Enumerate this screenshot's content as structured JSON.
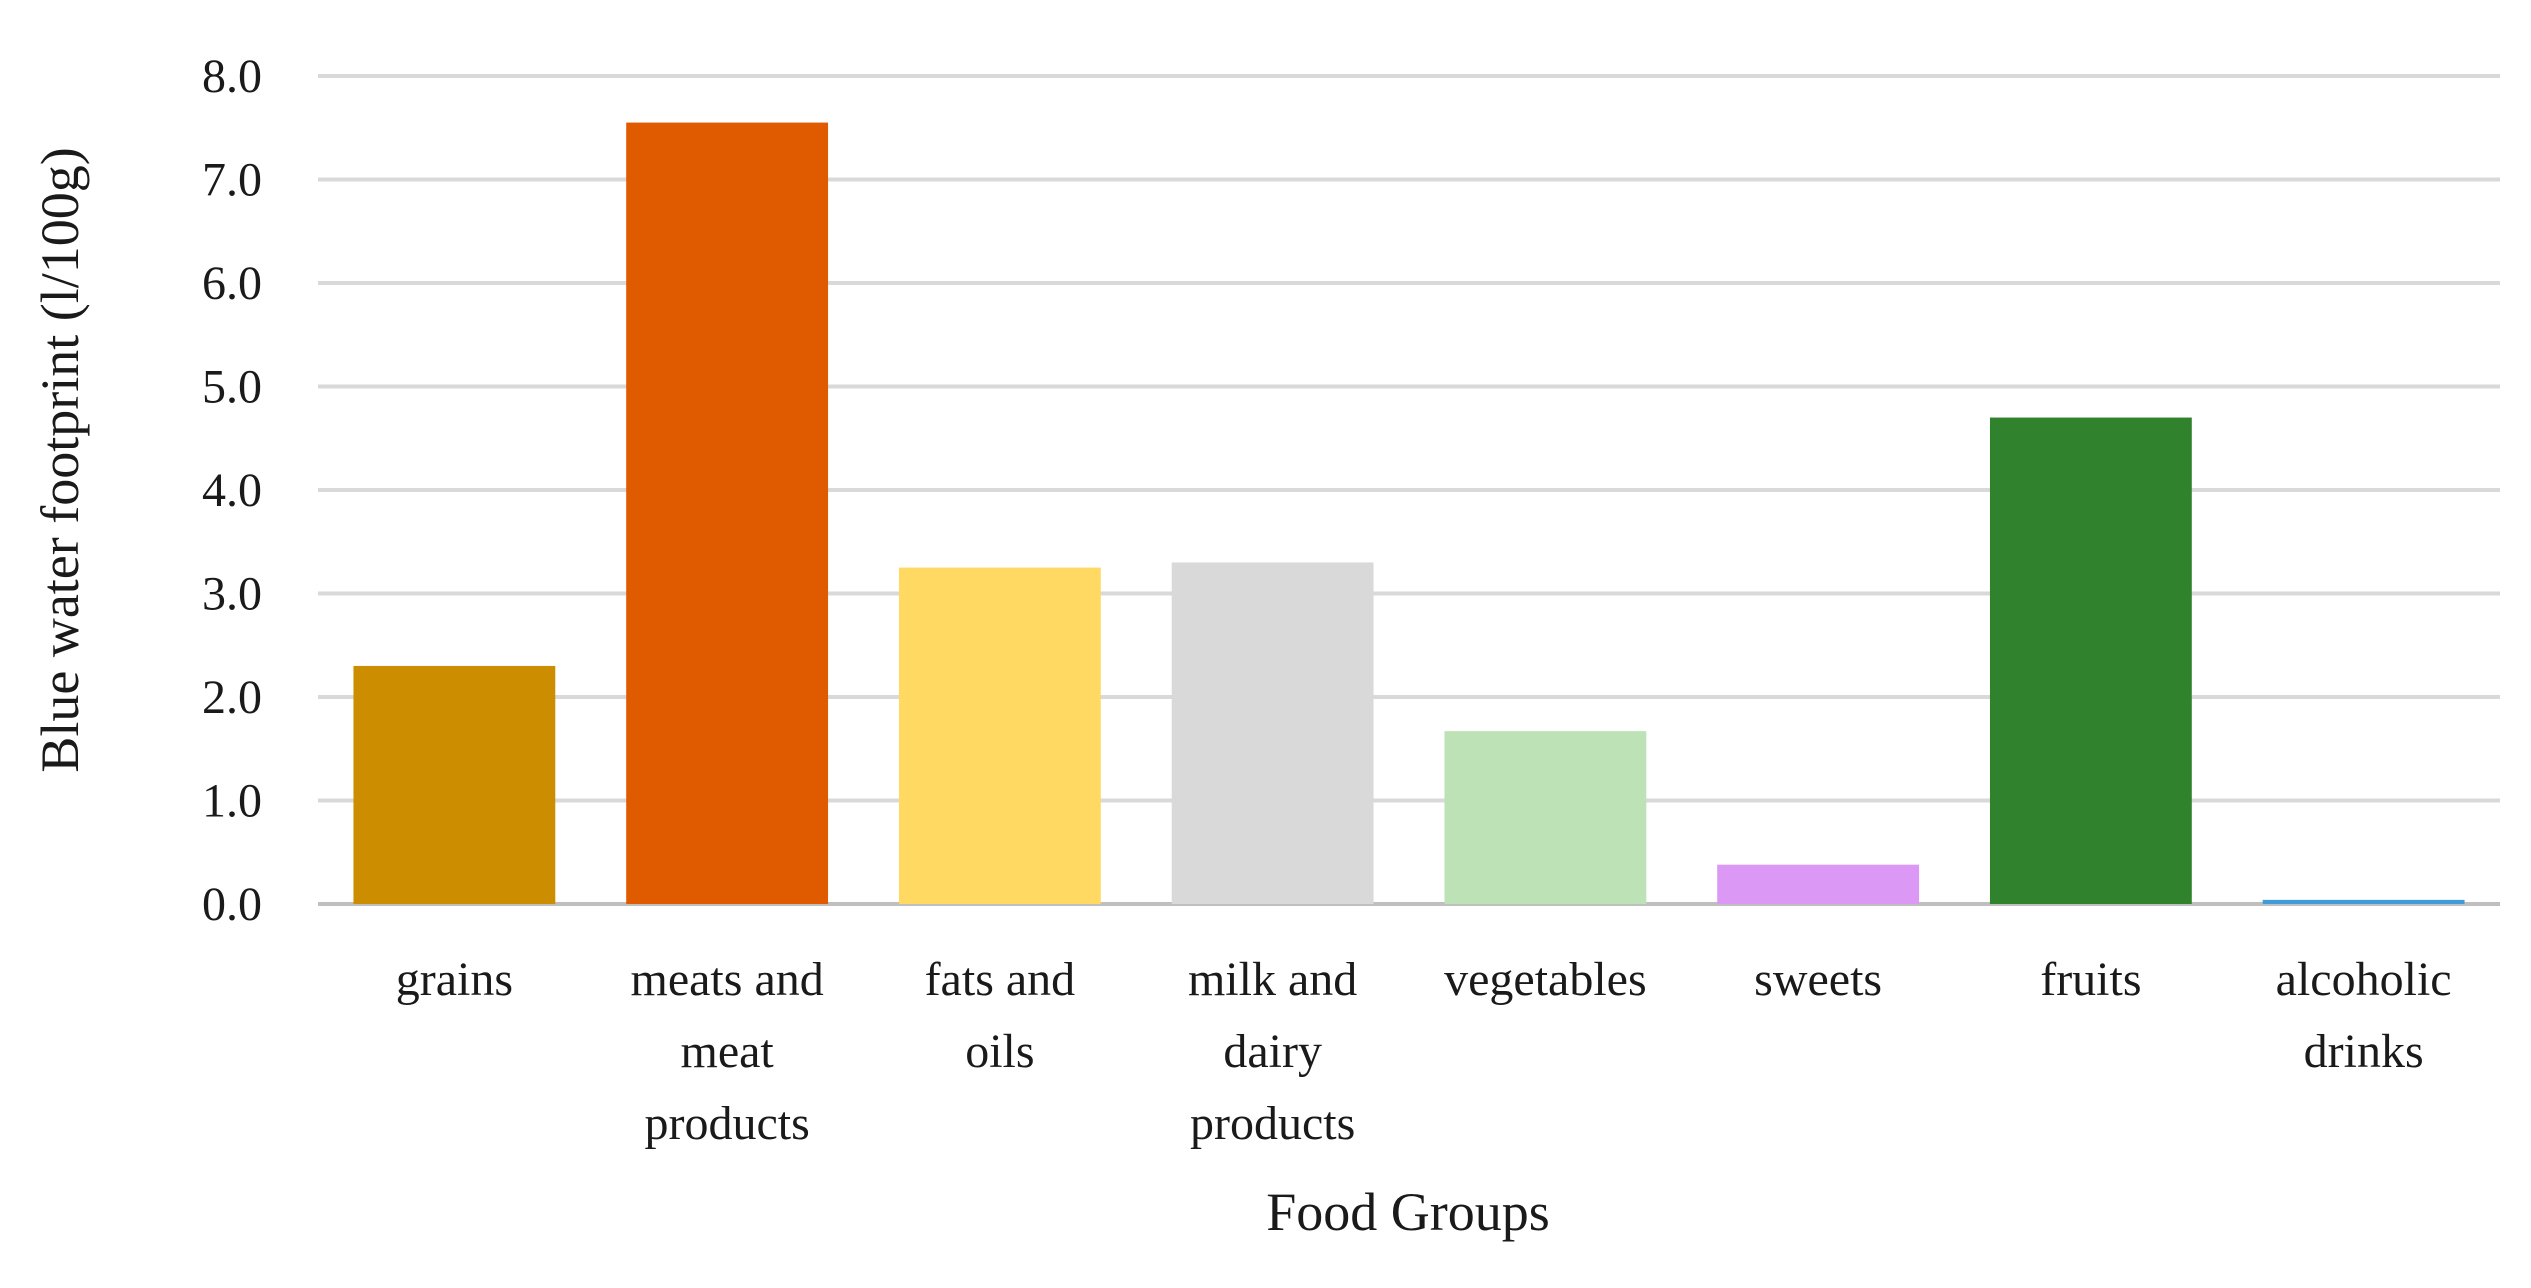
{
  "chart_data": {
    "type": "bar",
    "title": "",
    "xlabel": "Food Groups",
    "ylabel": "Blue water footprint (l/100g)",
    "ylim": [
      0,
      8
    ],
    "yticks": [
      "0.0",
      "1.0",
      "2.0",
      "3.0",
      "4.0",
      "5.0",
      "6.0",
      "7.0",
      "8.0"
    ],
    "grid": true,
    "legend": "none",
    "categories": [
      [
        "grains"
      ],
      [
        "meats and",
        "meat",
        "products"
      ],
      [
        "fats and",
        "oils"
      ],
      [
        "milk and",
        "dairy",
        "products"
      ],
      [
        "vegetables"
      ],
      [
        "sweets"
      ],
      [
        "fruits"
      ],
      [
        "alcoholic",
        "drinks"
      ]
    ],
    "values": [
      2.3,
      7.55,
      3.25,
      3.3,
      1.67,
      0.38,
      4.7,
      0.04
    ],
    "colors": [
      "#CC8E00",
      "#E05A00",
      "#FFD961",
      "#D9D9D9",
      "#BCE2B6",
      "#DB98F5",
      "#31822C",
      "#3F9BD9"
    ]
  }
}
